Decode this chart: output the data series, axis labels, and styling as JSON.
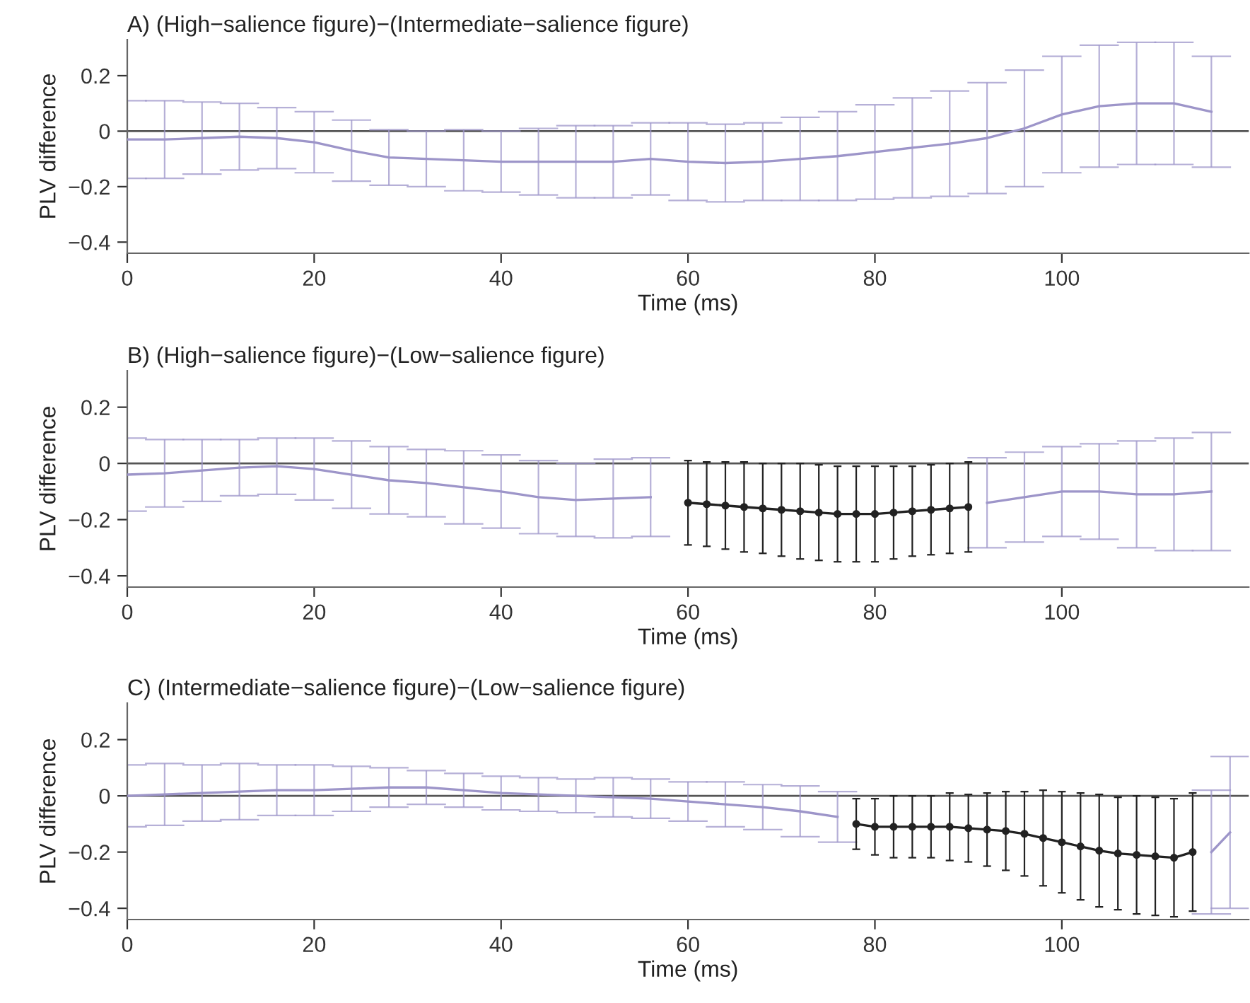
{
  "chart_data": [
    {
      "type": "line",
      "title": "A) (High−salience figure)−(Intermediate−salience figure)",
      "xlabel": "Time (ms)",
      "ylabel": "PLV difference",
      "xlim": [
        0,
        120
      ],
      "ylim": [
        -0.44,
        0.33
      ],
      "xticks": [
        0,
        20,
        40,
        60,
        80,
        100
      ],
      "yticks": [
        -0.4,
        -0.2,
        0,
        0.2
      ],
      "grid": false,
      "legend": false,
      "ref_lines": [
        {
          "axis": "y",
          "value": 0,
          "color": "#555555"
        }
      ],
      "series": [
        {
          "color": "#9d95c9",
          "marker": "none",
          "x": [
            0,
            4,
            8,
            12,
            16,
            20,
            24,
            28,
            32,
            36,
            40,
            44,
            48,
            52,
            56,
            60,
            64,
            68,
            72,
            76,
            80,
            84,
            88,
            92,
            96,
            100,
            104,
            108,
            112,
            116
          ],
          "values": [
            -0.03,
            -0.03,
            -0.025,
            -0.02,
            -0.025,
            -0.04,
            -0.07,
            -0.095,
            -0.1,
            -0.105,
            -0.11,
            -0.11,
            -0.11,
            -0.11,
            -0.1,
            -0.11,
            -0.115,
            -0.11,
            -0.1,
            -0.09,
            -0.075,
            -0.06,
            -0.045,
            -0.025,
            0.01,
            0.06,
            0.09,
            0.1,
            0.1,
            0.07
          ],
          "errors": [
            0.14,
            0.14,
            0.13,
            0.12,
            0.11,
            0.11,
            0.11,
            0.1,
            0.1,
            0.11,
            0.11,
            0.12,
            0.13,
            0.13,
            0.13,
            0.14,
            0.14,
            0.14,
            0.15,
            0.16,
            0.17,
            0.18,
            0.19,
            0.2,
            0.21,
            0.21,
            0.22,
            0.22,
            0.22,
            0.2
          ]
        }
      ]
    },
    {
      "type": "line",
      "title": "B) (High−salience figure)−(Low−salience figure)",
      "xlabel": "Time (ms)",
      "ylabel": "PLV difference",
      "xlim": [
        0,
        120
      ],
      "ylim": [
        -0.44,
        0.33
      ],
      "xticks": [
        0,
        20,
        40,
        60,
        80,
        100
      ],
      "yticks": [
        -0.4,
        -0.2,
        0,
        0.2
      ],
      "grid": false,
      "legend": false,
      "ref_lines": [
        {
          "axis": "y",
          "value": 0,
          "color": "#555555"
        }
      ],
      "series": [
        {
          "color": "#9d95c9",
          "marker": "none",
          "x": [
            0,
            4,
            8,
            12,
            16,
            20,
            24,
            28,
            32,
            36,
            40,
            44,
            48,
            52,
            56,
            null,
            92,
            96,
            100,
            104,
            108,
            112,
            116
          ],
          "values": [
            -0.04,
            -0.035,
            -0.025,
            -0.015,
            -0.01,
            -0.02,
            -0.04,
            -0.06,
            -0.07,
            -0.085,
            -0.1,
            -0.12,
            -0.13,
            -0.125,
            -0.12,
            null,
            -0.14,
            -0.12,
            -0.1,
            -0.1,
            -0.11,
            -0.11,
            -0.1
          ],
          "errors": [
            0.13,
            0.12,
            0.11,
            0.1,
            0.1,
            0.11,
            0.12,
            0.12,
            0.12,
            0.13,
            0.13,
            0.13,
            0.13,
            0.14,
            0.14,
            null,
            0.16,
            0.16,
            0.16,
            0.17,
            0.19,
            0.2,
            0.21
          ]
        },
        {
          "color": "#222222",
          "marker": "circle",
          "x": [
            60,
            62,
            64,
            66,
            68,
            70,
            72,
            74,
            76,
            78,
            80,
            82,
            84,
            86,
            88,
            90
          ],
          "values": [
            -0.14,
            -0.145,
            -0.15,
            -0.155,
            -0.16,
            -0.165,
            -0.17,
            -0.175,
            -0.18,
            -0.18,
            -0.18,
            -0.175,
            -0.17,
            -0.165,
            -0.16,
            -0.155
          ],
          "errors": [
            0.15,
            0.15,
            0.155,
            0.16,
            0.16,
            0.165,
            0.17,
            0.17,
            0.17,
            0.17,
            0.17,
            0.165,
            0.16,
            0.16,
            0.16,
            0.16
          ]
        }
      ]
    },
    {
      "type": "line",
      "title": "C) (Intermediate−salience figure)−(Low−salience figure)",
      "xlabel": "Time (ms)",
      "ylabel": "PLV difference",
      "xlim": [
        0,
        120
      ],
      "ylim": [
        -0.44,
        0.33
      ],
      "xticks": [
        0,
        20,
        40,
        60,
        80,
        100
      ],
      "yticks": [
        -0.4,
        -0.2,
        0,
        0.2
      ],
      "grid": false,
      "legend": false,
      "ref_lines": [
        {
          "axis": "y",
          "value": 0,
          "color": "#555555"
        }
      ],
      "series": [
        {
          "color": "#9d95c9",
          "marker": "none",
          "x": [
            0,
            4,
            8,
            12,
            16,
            20,
            24,
            28,
            32,
            36,
            40,
            44,
            48,
            52,
            56,
            60,
            64,
            68,
            72,
            76,
            null,
            116,
            118
          ],
          "values": [
            0.0,
            0.005,
            0.01,
            0.015,
            0.02,
            0.02,
            0.025,
            0.03,
            0.03,
            0.02,
            0.01,
            0.005,
            0.0,
            -0.005,
            -0.01,
            -0.02,
            -0.03,
            -0.04,
            -0.055,
            -0.075,
            null,
            -0.2,
            -0.13
          ],
          "errors": [
            0.11,
            0.11,
            0.1,
            0.1,
            0.09,
            0.09,
            0.08,
            0.07,
            0.06,
            0.06,
            0.06,
            0.06,
            0.06,
            0.07,
            0.07,
            0.07,
            0.08,
            0.08,
            0.09,
            0.09,
            null,
            0.22,
            0.27
          ]
        },
        {
          "color": "#222222",
          "marker": "circle",
          "x": [
            78,
            80,
            82,
            84,
            86,
            88,
            90,
            92,
            94,
            96,
            98,
            100,
            102,
            104,
            106,
            108,
            110,
            112,
            114
          ],
          "values": [
            -0.1,
            -0.11,
            -0.11,
            -0.11,
            -0.11,
            -0.11,
            -0.115,
            -0.12,
            -0.125,
            -0.135,
            -0.15,
            -0.165,
            -0.18,
            -0.195,
            -0.205,
            -0.21,
            -0.215,
            -0.22,
            -0.2
          ],
          "errors": [
            0.09,
            0.1,
            0.11,
            0.11,
            0.11,
            0.12,
            0.12,
            0.13,
            0.14,
            0.15,
            0.17,
            0.18,
            0.19,
            0.2,
            0.2,
            0.21,
            0.21,
            0.21,
            0.21
          ]
        }
      ]
    }
  ]
}
